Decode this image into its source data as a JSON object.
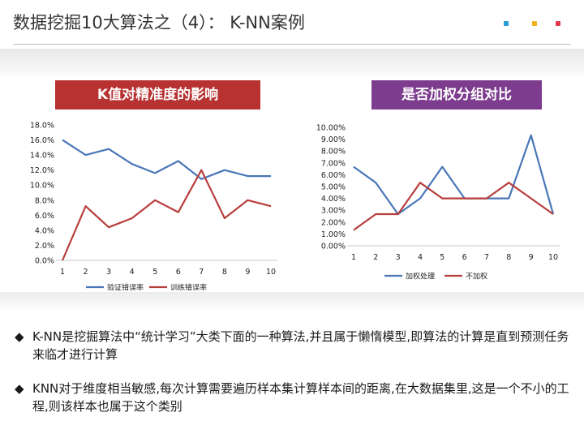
{
  "slide": {
    "title": "数据挖掘10大算法之（4）： K-NN案例",
    "accent_dots": [
      "#2a9fd6",
      "#f2b01e",
      "#e0394b"
    ]
  },
  "left_panel": {
    "banner": "K值对精准度的影响",
    "banner_color": "#b83232"
  },
  "right_panel": {
    "banner": "是否加权分组对比",
    "banner_color": "#7d3c8e"
  },
  "bullets": [
    {
      "symbol": "◆",
      "text": " K-NN是挖掘算法中“统计学习”大类下面的一种算法,并且属于懒惰模型,即算法的计算是直到预测任务来临才进行计算"
    },
    {
      "symbol": "◆",
      "text": "KNN对于维度相当敏感,每次计算需要遍历样本集计算样本间的距离,在大数据集里,这是一个不小的工程,则该样本也属于这个类别"
    }
  ],
  "chart_data": [
    {
      "type": "line",
      "title": "K值对精准度的影响",
      "xlabel": "",
      "ylabel": "",
      "categories": [
        "1",
        "2",
        "3",
        "4",
        "5",
        "6",
        "7",
        "8",
        "9",
        "10"
      ],
      "ylim": [
        0,
        18
      ],
      "y_ticks": [
        "0.0%",
        "2.0%",
        "4.0%",
        "6.0%",
        "8.0%",
        "10.0%",
        "12.0%",
        "14.0%",
        "16.0%",
        "18.0%"
      ],
      "grid": false,
      "legend": "bottom",
      "series": [
        {
          "name": "验证错误率",
          "color": "#4a76b8",
          "values": [
            16.0,
            14.0,
            14.8,
            12.8,
            11.6,
            13.2,
            10.8,
            12.0,
            11.2,
            11.2
          ]
        },
        {
          "name": "训练错误率",
          "color": "#b83e3c",
          "values": [
            0.0,
            7.2,
            4.4,
            5.6,
            8.0,
            6.4,
            12.0,
            5.6,
            8.0,
            7.2
          ]
        }
      ]
    },
    {
      "type": "line",
      "title": "是否加权分组对比",
      "xlabel": "",
      "ylabel": "",
      "categories": [
        "1",
        "2",
        "3",
        "4",
        "5",
        "6",
        "7",
        "8",
        "9",
        "10"
      ],
      "ylim": [
        0,
        10
      ],
      "y_ticks": [
        "0.00%",
        "1.00%",
        "2.00%",
        "3.00%",
        "4.00%",
        "5.00%",
        "6.00%",
        "7.00%",
        "8.00%",
        "9.00%",
        "10.00%"
      ],
      "grid": false,
      "legend": "bottom",
      "series": [
        {
          "name": "加权处理",
          "color": "#4a76b8",
          "values": [
            6.67,
            5.33,
            2.67,
            4.0,
            6.67,
            4.0,
            4.0,
            4.0,
            9.33,
            2.67
          ]
        },
        {
          "name": "不加权",
          "color": "#b83e3c",
          "values": [
            1.33,
            2.67,
            2.67,
            5.33,
            4.0,
            4.0,
            4.0,
            5.33,
            4.0,
            2.67
          ]
        }
      ]
    }
  ]
}
